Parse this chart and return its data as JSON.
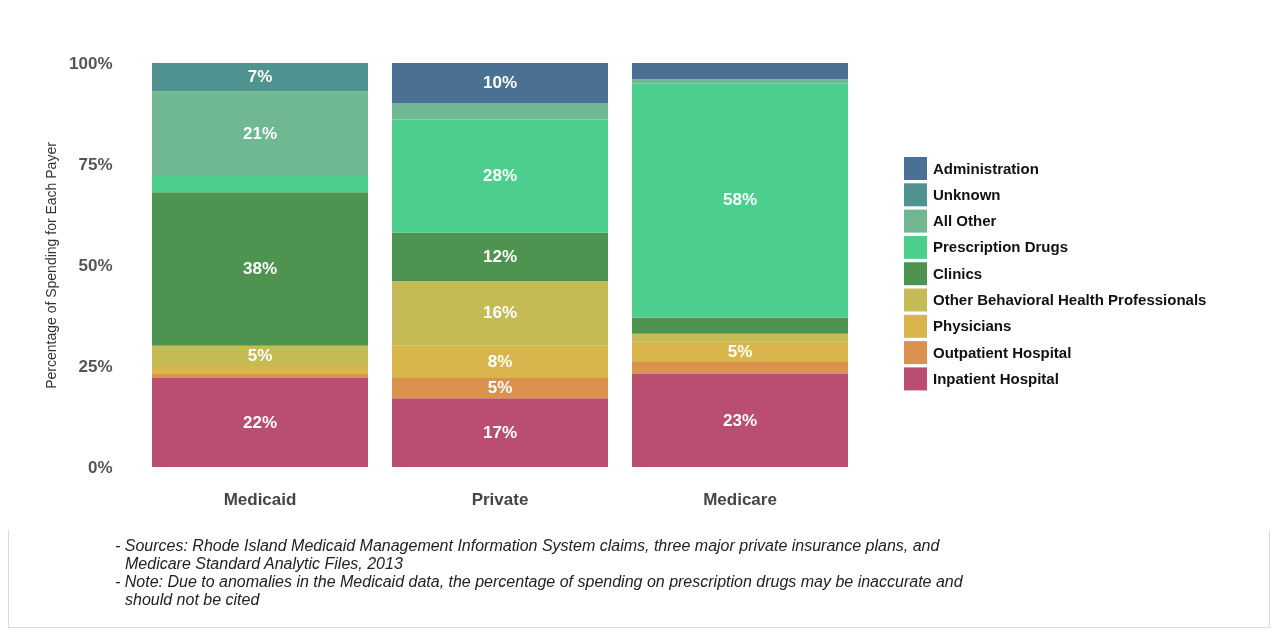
{
  "chart_data": {
    "type": "bar",
    "stacked": true,
    "categories": [
      "Medicaid",
      "Private",
      "Medicare"
    ],
    "ylabel": "Percentage of Spending for Each Payer",
    "ylim": [
      0,
      100
    ],
    "yticks": [
      {
        "value": 0,
        "label": "0%"
      },
      {
        "value": 25,
        "label": "25%"
      },
      {
        "value": 50,
        "label": "50%"
      },
      {
        "value": 75,
        "label": "75%"
      },
      {
        "value": 100,
        "label": "100%"
      }
    ],
    "legend": "right",
    "series": [
      {
        "name": "Inpatient Hospital",
        "color": "#b94e70",
        "values": [
          22,
          17,
          23
        ],
        "value_labels": [
          "22%",
          "17%",
          "23%"
        ]
      },
      {
        "name": "Outpatient Hospital",
        "color": "#db924e",
        "values": [
          1,
          5,
          3
        ],
        "value_labels": [
          null,
          "5%",
          null
        ]
      },
      {
        "name": "Physicians",
        "color": "#d9b64b",
        "values": [
          2,
          8,
          5
        ],
        "value_labels": [
          null,
          "8%",
          "5%"
        ]
      },
      {
        "name": "Other Behavioral Health Professionals",
        "color": "#c4bb55",
        "values": [
          5,
          16,
          2
        ],
        "value_labels": [
          "5%",
          "16%",
          null
        ]
      },
      {
        "name": "Clinics",
        "color": "#4e9350",
        "values": [
          38,
          12,
          4
        ],
        "value_labels": [
          "38%",
          "12%",
          null
        ]
      },
      {
        "name": "Prescription Drugs",
        "color": "#4ccf8e",
        "values": [
          4,
          28,
          58
        ],
        "value_labels": [
          null,
          "28%",
          "58%"
        ]
      },
      {
        "name": "All Other",
        "color": "#6fb892",
        "values": [
          21,
          4,
          1
        ],
        "value_labels": [
          "21%",
          null,
          null
        ]
      },
      {
        "name": "Unknown",
        "color": "#4e9390",
        "values": [
          7,
          null,
          null
        ],
        "value_labels": [
          "7%",
          null,
          null
        ]
      },
      {
        "name": "Administration",
        "color": "#4a7094",
        "values": [
          null,
          10,
          4
        ],
        "value_labels": [
          null,
          "10%",
          null
        ]
      }
    ],
    "annotations": [
      "- Sources: Rhode Island Medicaid Management Information System claims, three major private insurance plans, and Medicare Standard Analytic Files, 2013",
      "- Note: Due to anomalies in the Medicaid data, the percentage of spending on prescription drugs may be inaccurate and should not be cited"
    ]
  }
}
